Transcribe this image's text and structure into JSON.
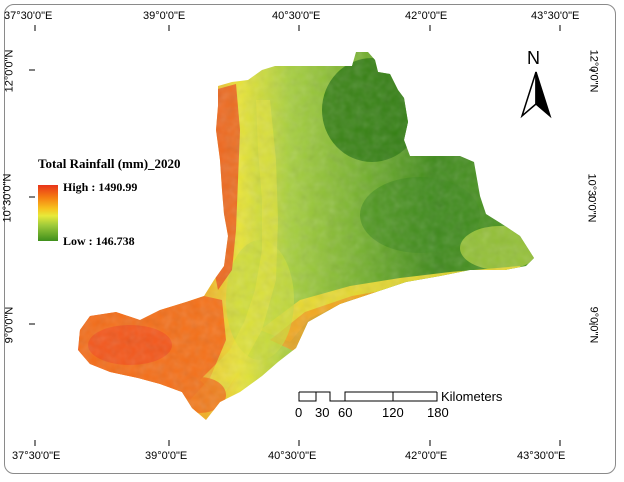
{
  "map": {
    "legend": {
      "title": "Total Rainfall (mm)_2020",
      "high_label": "High : 1490.99",
      "low_label": "Low : 146.738",
      "high_value": 1490.99,
      "low_value": 146.738,
      "ramp_colors": [
        "#e8341a",
        "#f57d12",
        "#f7c21e",
        "#e7e93a",
        "#9fca3a",
        "#3f8f1c"
      ]
    },
    "north_arrow": {
      "label": "N",
      "icon": "north-arrow-icon"
    },
    "scale_bar": {
      "unit": "Kilometers",
      "ticks": [
        "0",
        "30",
        "60",
        "120",
        "180"
      ]
    },
    "graticule": {
      "top": [
        "37°30'0\"E",
        "39°0'0\"E",
        "40°30'0\"E",
        "42°0'0\"E",
        "43°30'0\"E"
      ],
      "bottom": [
        "37°30'0\"E",
        "39°0'0\"E",
        "40°30'0\"E",
        "42°0'0\"E",
        "43°30'0\"E"
      ],
      "left": [
        "12°0'0\"N",
        "10°30'0\"N",
        "9°0'0\"N"
      ],
      "right": [
        "12°0'0\"N",
        "10°30'0\"N",
        "9°0'0\"N"
      ]
    }
  }
}
